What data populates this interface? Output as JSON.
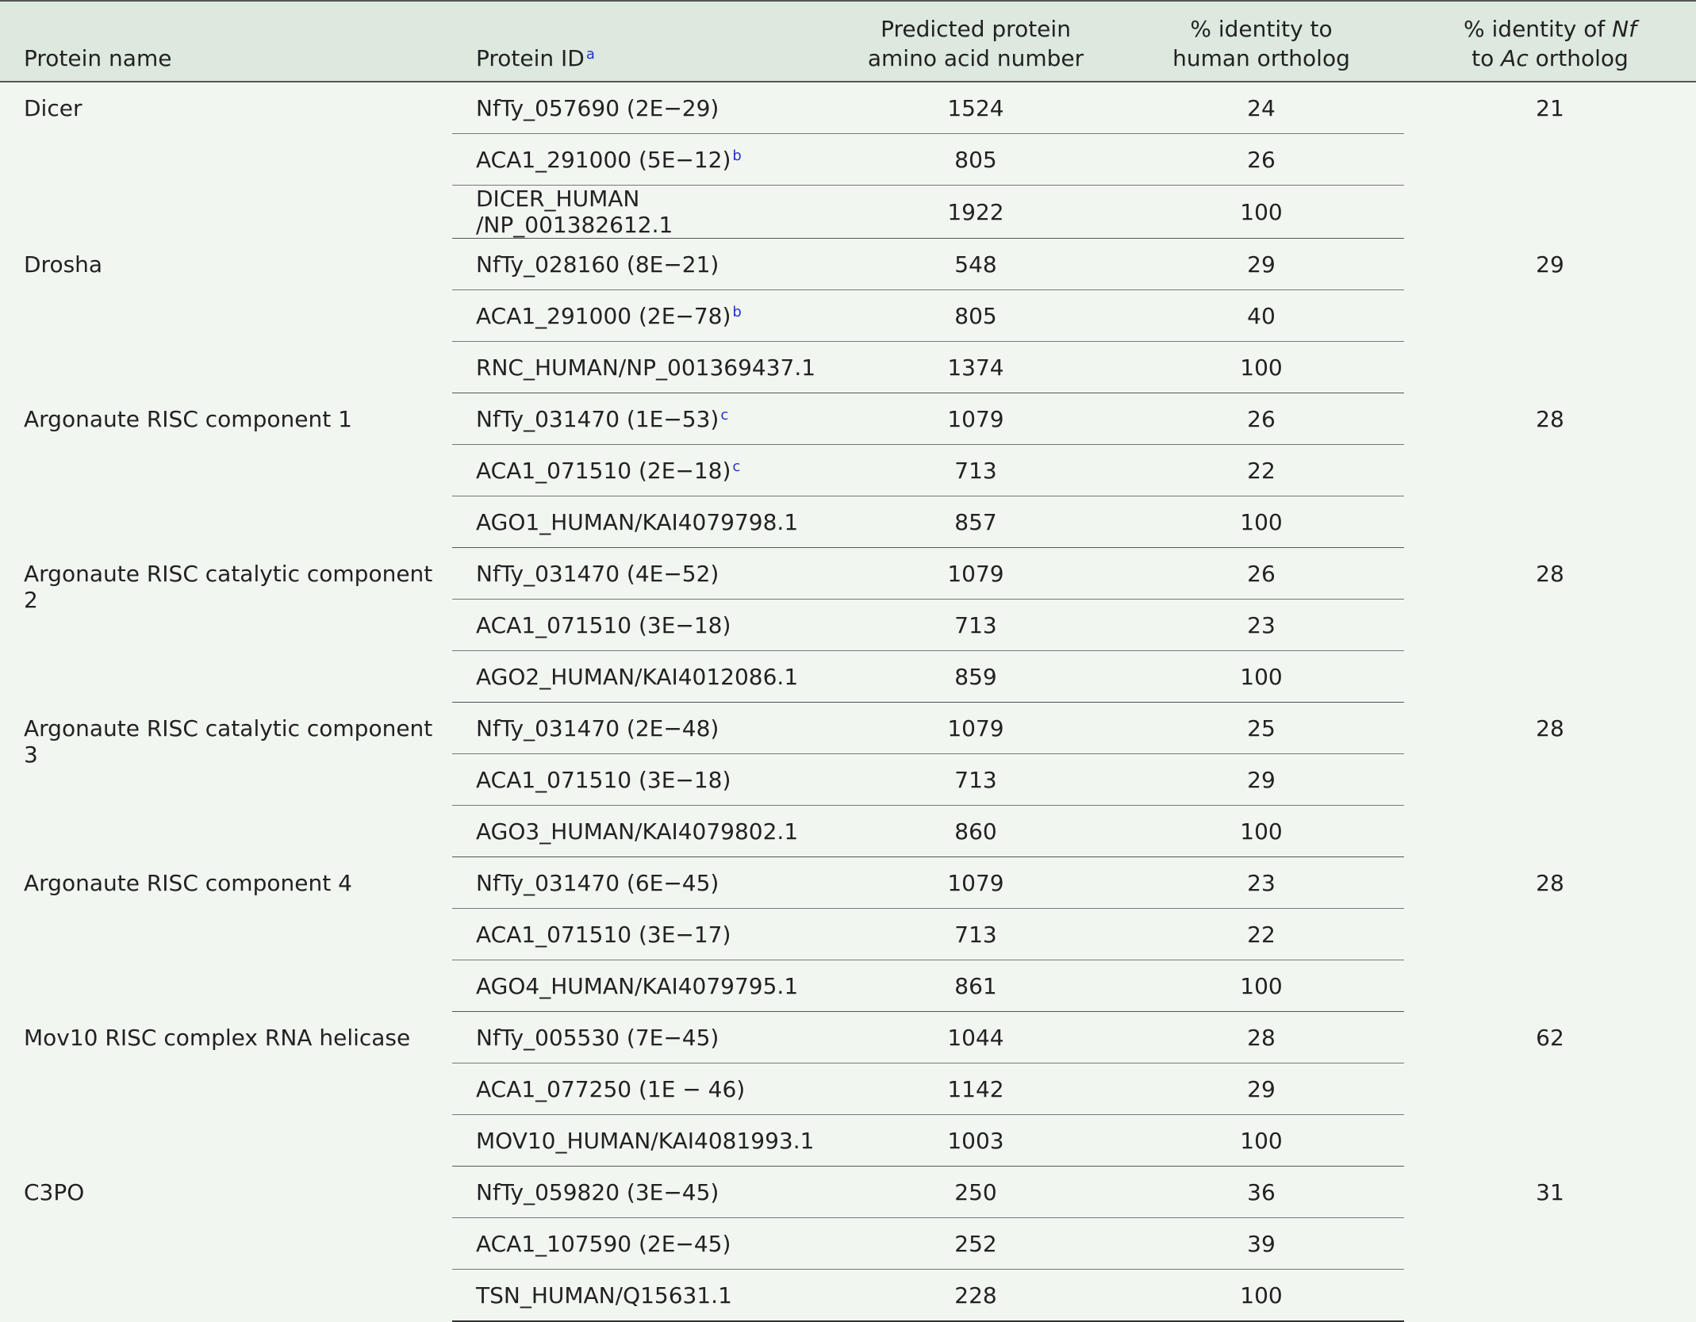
{
  "header": {
    "protein_name": "Protein name",
    "protein_id": "Protein ID",
    "protein_id_footnote": "a",
    "predicted_line1": "Predicted protein",
    "predicted_line2": "amino acid number",
    "identity_line1": "% identity to",
    "identity_line2": "human ortholog",
    "nfac_prefix": "% identity of ",
    "nfac_nf": "Nf",
    "nfac_to": "to ",
    "nfac_ac": "Ac",
    "nfac_suffix": " ortholog"
  },
  "groups": [
    {
      "name": "Dicer",
      "nf_ac_identity": "21",
      "rows": [
        {
          "id": "NfTy_057690 (2E−29)",
          "sup": "",
          "aa": "1524",
          "identity": "24"
        },
        {
          "id": "ACA1_291000 (5E−12)",
          "sup": "b",
          "aa": "805",
          "identity": "26"
        },
        {
          "id": "DICER_HUMAN /NP_001382612.1",
          "sup": "",
          "aa": "1922",
          "identity": "100"
        }
      ]
    },
    {
      "name": "Drosha",
      "nf_ac_identity": "29",
      "rows": [
        {
          "id": "NfTy_028160 (8E−21)",
          "sup": "",
          "aa": "548",
          "identity": "29"
        },
        {
          "id": "ACA1_291000 (2E−78)",
          "sup": "b",
          "aa": "805",
          "identity": "40"
        },
        {
          "id": "RNC_HUMAN/NP_001369437.1",
          "sup": "",
          "aa": "1374",
          "identity": "100"
        }
      ]
    },
    {
      "name": "Argonaute RISC component 1",
      "nf_ac_identity": "28",
      "rows": [
        {
          "id": "NfTy_031470 (1E−53)",
          "sup": "c",
          "aa": "1079",
          "identity": "26"
        },
        {
          "id": "ACA1_071510 (2E−18)",
          "sup": "c",
          "aa": "713",
          "identity": "22"
        },
        {
          "id": "AGO1_HUMAN/KAI4079798.1",
          "sup": "",
          "aa": "857",
          "identity": "100"
        }
      ]
    },
    {
      "name": "Argonaute RISC catalytic component 2",
      "nf_ac_identity": "28",
      "rows": [
        {
          "id": "NfTy_031470 (4E−52)",
          "sup": "",
          "aa": "1079",
          "identity": "26"
        },
        {
          "id": "ACA1_071510 (3E−18)",
          "sup": "",
          "aa": "713",
          "identity": "23"
        },
        {
          "id": "AGO2_HUMAN/KAI4012086.1",
          "sup": "",
          "aa": "859",
          "identity": "100"
        }
      ]
    },
    {
      "name": "Argonaute RISC catalytic component 3",
      "nf_ac_identity": "28",
      "rows": [
        {
          "id": "NfTy_031470 (2E−48)",
          "sup": "",
          "aa": "1079",
          "identity": "25"
        },
        {
          "id": "ACA1_071510 (3E−18)",
          "sup": "",
          "aa": "713",
          "identity": "29"
        },
        {
          "id": "AGO3_HUMAN/KAI4079802.1",
          "sup": "",
          "aa": "860",
          "identity": "100"
        }
      ]
    },
    {
      "name": "Argonaute RISC component 4",
      "nf_ac_identity": "28",
      "rows": [
        {
          "id": "NfTy_031470 (6E−45)",
          "sup": "",
          "aa": "1079",
          "identity": "23"
        },
        {
          "id": "ACA1_071510 (3E−17)",
          "sup": "",
          "aa": "713",
          "identity": "22"
        },
        {
          "id": "AGO4_HUMAN/KAI4079795.1",
          "sup": "",
          "aa": "861",
          "identity": "100"
        }
      ]
    },
    {
      "name": "Mov10 RISC complex RNA helicase",
      "nf_ac_identity": "62",
      "rows": [
        {
          "id": "NfTy_005530 (7E−45)",
          "sup": "",
          "aa": "1044",
          "identity": "28"
        },
        {
          "id": "ACA1_077250 (1E − 46)",
          "sup": "",
          "aa": "1142",
          "identity": "29"
        },
        {
          "id": "MOV10_HUMAN/KAI4081993.1",
          "sup": "",
          "aa": "1003",
          "identity": "100"
        }
      ]
    },
    {
      "name": "C3PO",
      "nf_ac_identity": "31",
      "rows": [
        {
          "id": "NfTy_059820 (3E−45)",
          "sup": "",
          "aa": "250",
          "identity": "36"
        },
        {
          "id": "ACA1_107590 (2E−45)",
          "sup": "",
          "aa": "252",
          "identity": "39"
        },
        {
          "id": "TSN_HUMAN/Q15631.1",
          "sup": "",
          "aa": "228",
          "identity": "100"
        }
      ]
    }
  ]
}
